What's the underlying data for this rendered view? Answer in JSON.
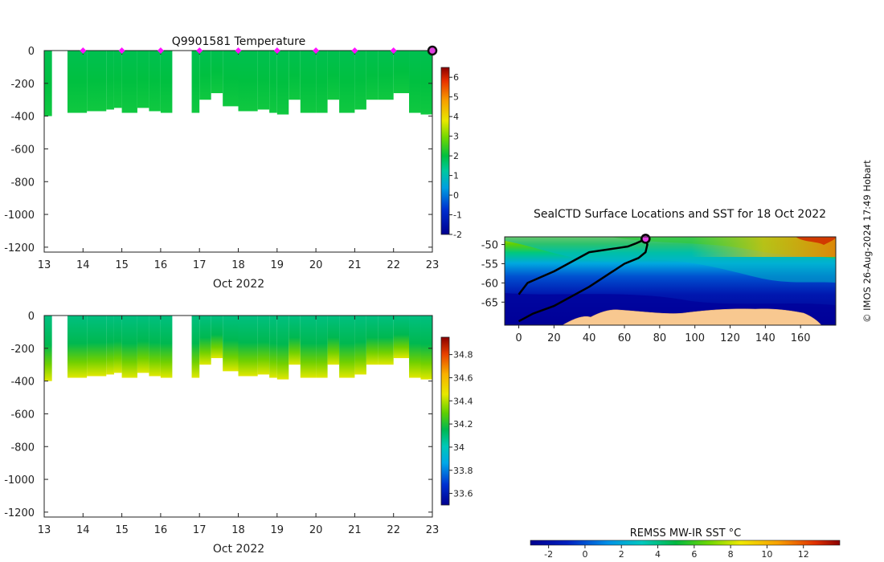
{
  "chart_data": [
    {
      "id": "temperature",
      "type": "heatmap",
      "title": "Q9901581  Temperature",
      "xlabel": "Oct 2022",
      "ylabel": "",
      "xlim": [
        13,
        23
      ],
      "ylim": [
        -1230,
        0
      ],
      "xticks": [
        13,
        14,
        15,
        16,
        17,
        18,
        19,
        20,
        21,
        22,
        23
      ],
      "yticks": [
        0,
        -200,
        -400,
        -600,
        -800,
        -1000,
        -1200
      ],
      "profile_day": [
        13.0,
        13.2,
        13.6,
        14.1,
        14.6,
        14.8,
        15.0,
        15.4,
        15.7,
        16.0,
        16.3,
        16.8,
        17.0,
        17.3,
        17.6,
        18.0,
        18.5,
        18.8,
        19.0,
        19.3,
        19.6,
        20.0,
        20.3,
        20.6,
        21.0,
        21.3,
        21.6,
        22.0,
        22.4,
        22.7,
        23.0
      ],
      "profile_depth": [
        -400,
        0,
        -380,
        -370,
        -360,
        -350,
        -380,
        -350,
        -370,
        -380,
        0,
        -380,
        -300,
        -260,
        -340,
        -370,
        -360,
        -380,
        -390,
        -300,
        -380,
        -380,
        -300,
        -380,
        -360,
        -300,
        -300,
        -260,
        -380,
        -390,
        -390
      ],
      "surface_markers": [
        14,
        15,
        16,
        17,
        18,
        19,
        20,
        21,
        22
      ],
      "last_profile": 23,
      "colorbar": {
        "min": -2,
        "max": 6.5,
        "ticks": [
          6,
          5,
          4,
          3,
          2,
          1,
          0,
          -1,
          -2
        ]
      }
    },
    {
      "id": "salinity",
      "type": "heatmap",
      "title": "",
      "xlabel": "Oct 2022",
      "ylabel": "",
      "xlim": [
        13,
        23
      ],
      "ylim": [
        -1230,
        0
      ],
      "xticks": [
        13,
        14,
        15,
        16,
        17,
        18,
        19,
        20,
        21,
        22,
        23
      ],
      "yticks": [
        0,
        -200,
        -400,
        -600,
        -800,
        -1000,
        -1200
      ],
      "profile_day": [
        13.0,
        13.2,
        13.6,
        14.1,
        14.6,
        14.8,
        15.0,
        15.4,
        15.7,
        16.0,
        16.3,
        16.8,
        17.0,
        17.3,
        17.6,
        18.0,
        18.5,
        18.8,
        19.0,
        19.3,
        19.6,
        20.0,
        20.3,
        20.6,
        21.0,
        21.3,
        21.6,
        22.0,
        22.4,
        22.7,
        23.0
      ],
      "profile_depth": [
        -400,
        0,
        -380,
        -370,
        -360,
        -350,
        -380,
        -350,
        -370,
        -380,
        0,
        -380,
        -300,
        -260,
        -340,
        -370,
        -360,
        -380,
        -390,
        -300,
        -380,
        -380,
        -300,
        -380,
        -360,
        -300,
        -300,
        -260,
        -380,
        -390,
        -390
      ],
      "colorbar": {
        "min": 33.5,
        "max": 34.95,
        "ticks": [
          34.8,
          34.6,
          34.4,
          34.2,
          34,
          33.8,
          33.6
        ]
      }
    },
    {
      "id": "sst_map",
      "type": "heatmap",
      "title": "SealCTD Surface Locations and SST for 18 Oct 2022",
      "xticks": [
        0,
        20,
        40,
        60,
        80,
        100,
        120,
        140,
        160
      ],
      "yticks": [
        -50,
        -55,
        -60,
        -65
      ],
      "xlim": [
        -8,
        180
      ],
      "ylim": [
        -71,
        -48
      ],
      "track_lon": [
        0,
        5,
        20,
        40,
        55,
        62,
        66,
        70,
        72,
        73,
        72,
        68,
        60,
        40,
        20,
        8,
        0
      ],
      "track_lat": [
        -63,
        -60,
        -57,
        -52,
        -51,
        -50.5,
        -49.8,
        -49,
        -48.5,
        -50,
        -52,
        -53.5,
        -55,
        -61,
        -66,
        -68,
        -70
      ],
      "current_location": {
        "lon": 72,
        "lat": -48.5
      },
      "colorbar": {
        "label": "REMSS MW-IR SST °C",
        "min": -3,
        "max": 14,
        "ticks": [
          -2,
          0,
          2,
          4,
          6,
          8,
          10,
          12
        ]
      }
    }
  ],
  "credit": "© IMOS 26-Aug-2024 17:49 Hobart"
}
